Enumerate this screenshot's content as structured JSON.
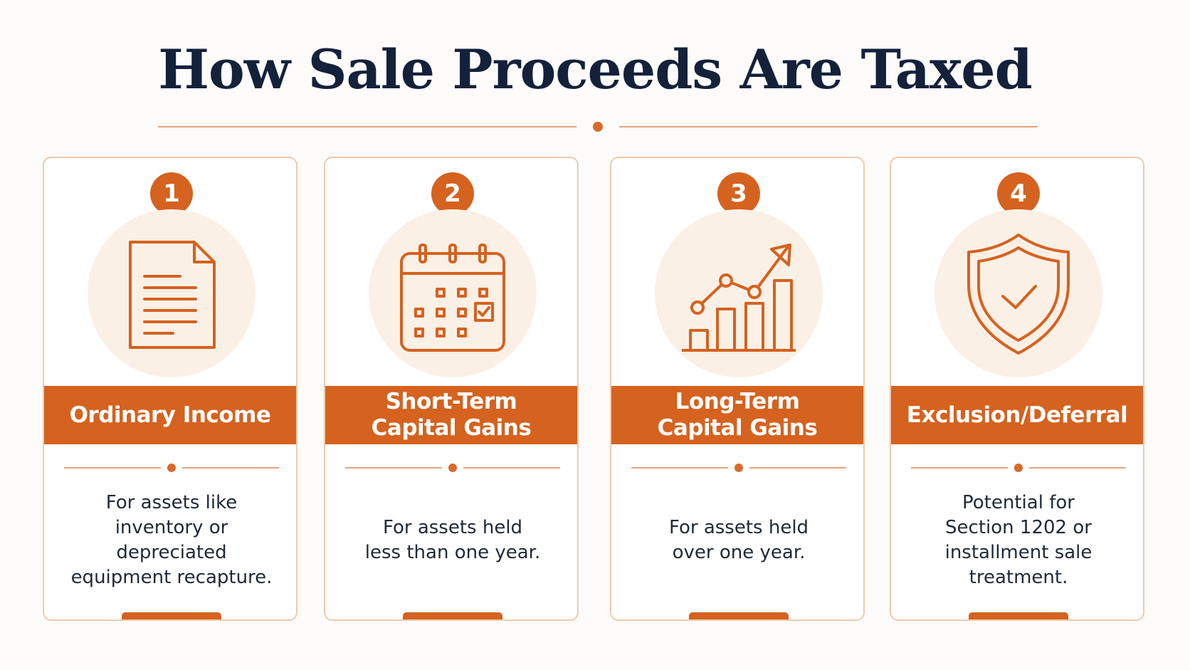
{
  "title": "How Sale Proceeds Are Taxed",
  "colors": {
    "accent": "#d5621f",
    "title": "#14213a",
    "divider": "#e3a27a",
    "icon_circle": "#fbf0e6",
    "card_border": "#f1c9ab"
  },
  "cards": [
    {
      "number": "1",
      "icon": "document-icon",
      "heading": "Ordinary Income",
      "description": "For assets like\ninventory or\ndepreciated\nequipment recapture."
    },
    {
      "number": "2",
      "icon": "calendar-icon",
      "heading": "Short-Term\nCapital Gains",
      "description": "For assets held\nless than one year."
    },
    {
      "number": "3",
      "icon": "growth-chart-icon",
      "heading": "Long-Term\nCapital Gains",
      "description": "For assets held\nover one year."
    },
    {
      "number": "4",
      "icon": "shield-check-icon",
      "heading": "Exclusion/Deferral",
      "description": "Potential for\nSection 1202 or\ninstallment sale\ntreatment."
    }
  ]
}
